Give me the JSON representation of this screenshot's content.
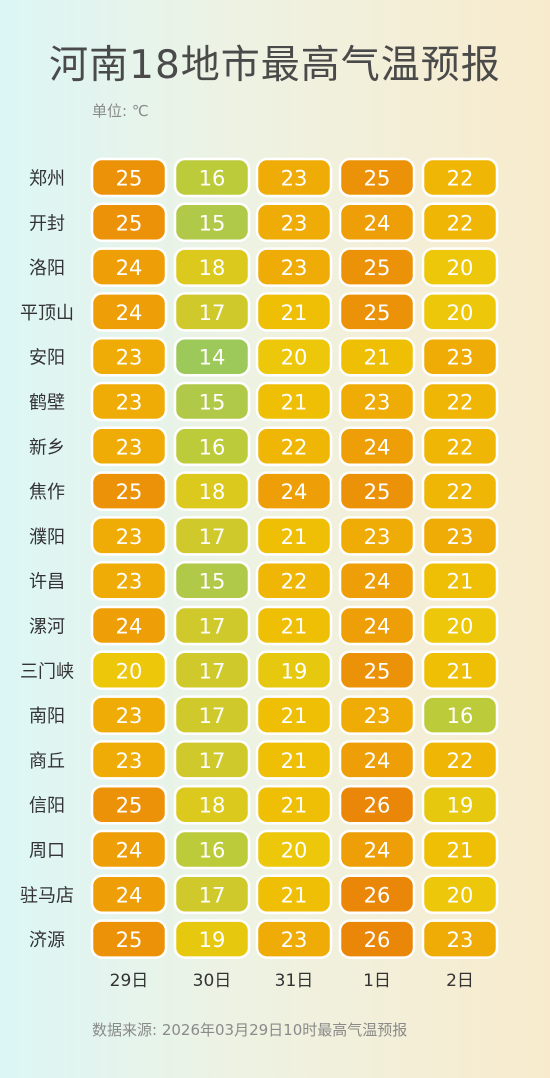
{
  "title": "河南18地市最高气温预报",
  "unit_label": "单位: ℃",
  "source": "数据来源: 2026年03月29日10时最高气温预报",
  "chart_data": {
    "type": "heatmap",
    "title": "河南18地市最高气温预报",
    "unit": "℃",
    "columns": [
      "29日",
      "30日",
      "31日",
      "1日",
      "2日"
    ],
    "rows": [
      "郑州",
      "开封",
      "洛阳",
      "平顶山",
      "安阳",
      "鹤壁",
      "新乡",
      "焦作",
      "濮阳",
      "许昌",
      "漯河",
      "三门峡",
      "南阳",
      "商丘",
      "信阳",
      "周口",
      "驻马店",
      "济源"
    ],
    "values": [
      [
        25,
        16,
        23,
        25,
        22
      ],
      [
        25,
        15,
        23,
        24,
        22
      ],
      [
        24,
        18,
        23,
        25,
        20
      ],
      [
        24,
        17,
        21,
        25,
        20
      ],
      [
        23,
        14,
        20,
        21,
        23
      ],
      [
        23,
        15,
        21,
        23,
        22
      ],
      [
        23,
        16,
        22,
        24,
        22
      ],
      [
        25,
        18,
        24,
        25,
        22
      ],
      [
        23,
        17,
        21,
        23,
        23
      ],
      [
        23,
        15,
        22,
        24,
        21
      ],
      [
        24,
        17,
        21,
        24,
        20
      ],
      [
        20,
        17,
        19,
        25,
        21
      ],
      [
        23,
        17,
        21,
        23,
        16
      ],
      [
        23,
        17,
        21,
        24,
        22
      ],
      [
        25,
        18,
        21,
        26,
        19
      ],
      [
        24,
        16,
        20,
        24,
        21
      ],
      [
        24,
        17,
        21,
        26,
        20
      ],
      [
        25,
        19,
        23,
        26,
        23
      ]
    ],
    "color_scale": {
      "14": "#9dc85a",
      "15": "#b0c948",
      "16": "#bccb3a",
      "17": "#cfc92c",
      "18": "#dcc91d",
      "19": "#e6c90e",
      "20": "#ecc70a",
      "21": "#efbf05",
      "22": "#efb605",
      "23": "#efac06",
      "24": "#ee9f08",
      "25": "#ec9208",
      "26": "#ea8708"
    },
    "text_color": "#ffffff"
  }
}
